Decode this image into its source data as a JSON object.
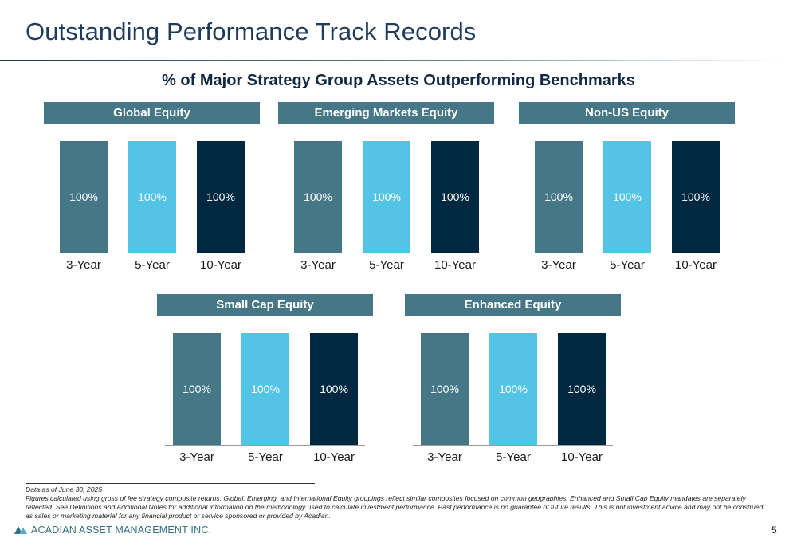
{
  "header": {
    "title": "Outstanding Performance Track Records",
    "subtitle": "% of Major Strategy Group Assets Outperforming Benchmarks"
  },
  "colors": {
    "header_bg": "#467787",
    "series": [
      "#467787",
      "#54C4E6",
      "#002840"
    ]
  },
  "chart_data": [
    {
      "type": "bar",
      "title": "Global Equity",
      "categories": [
        "3-Year",
        "5-Year",
        "10-Year"
      ],
      "values": [
        100,
        100,
        100
      ],
      "labels": [
        "100%",
        "100%",
        "100%"
      ],
      "ylim": [
        0,
        100
      ]
    },
    {
      "type": "bar",
      "title": "Emerging Markets Equity",
      "categories": [
        "3-Year",
        "5-Year",
        "10-Year"
      ],
      "values": [
        100,
        100,
        100
      ],
      "labels": [
        "100%",
        "100%",
        "100%"
      ],
      "ylim": [
        0,
        100
      ]
    },
    {
      "type": "bar",
      "title": "Non-US Equity",
      "categories": [
        "3-Year",
        "5-Year",
        "10-Year"
      ],
      "values": [
        100,
        100,
        100
      ],
      "labels": [
        "100%",
        "100%",
        "100%"
      ],
      "ylim": [
        0,
        100
      ]
    },
    {
      "type": "bar",
      "title": "Small Cap Equity",
      "categories": [
        "3-Year",
        "5-Year",
        "10-Year"
      ],
      "values": [
        100,
        100,
        100
      ],
      "labels": [
        "100%",
        "100%",
        "100%"
      ],
      "ylim": [
        0,
        100
      ]
    },
    {
      "type": "bar",
      "title": "Enhanced Equity",
      "categories": [
        "3-Year",
        "5-Year",
        "10-Year"
      ],
      "values": [
        100,
        100,
        100
      ],
      "labels": [
        "100%",
        "100%",
        "100%"
      ],
      "ylim": [
        0,
        100
      ]
    }
  ],
  "footnotes": [
    "Data as of June 30, 2025",
    "Figures calculated using gross of fee strategy composite returns. Global, Emerging, and International Equity groupings reflect similar composites focused on common geographies. Enhanced and Small Cap Equity mandates are separately reflected. See Definitions and Additional Notes for additional information on the methodology used to calculate investment performance. Past performance is no guarantee of future results. This is not investment advice and may not be construed as sales or marketing material for any financial product or service sponsored or provided by Acadian."
  ],
  "footer": {
    "logo_text": "ACADIAN ASSET MANAGEMENT INC.",
    "logo_icon": "acadian-logo-icon",
    "page_number": "5"
  }
}
